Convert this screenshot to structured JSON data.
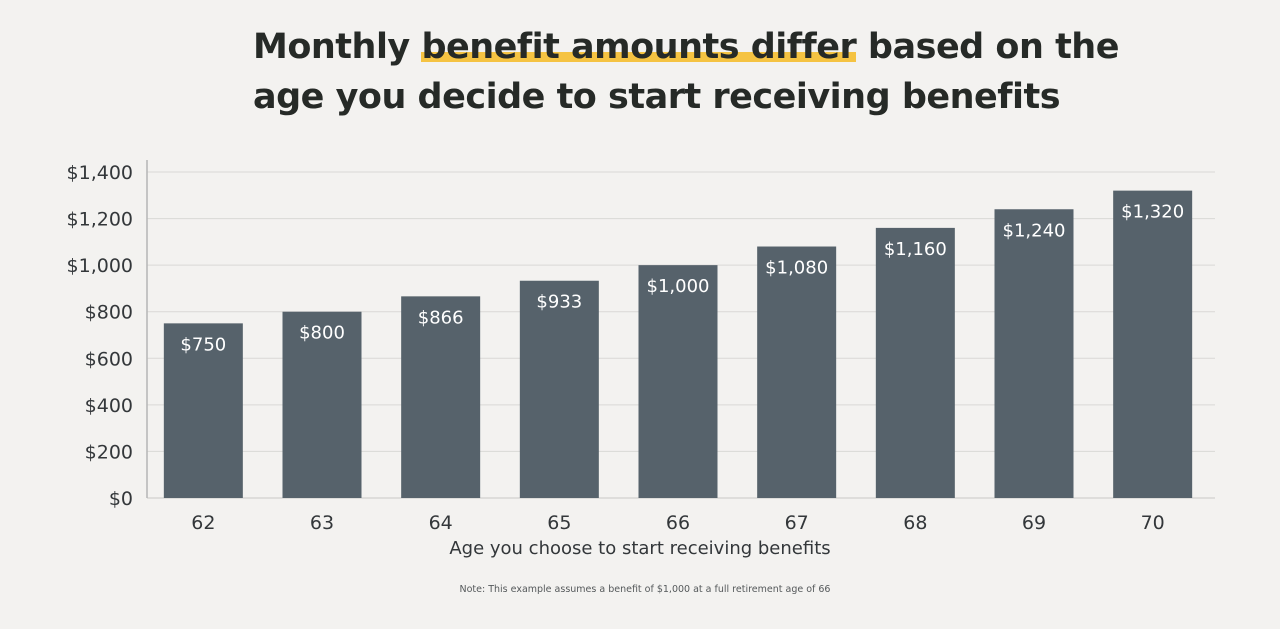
{
  "chart_data": {
    "type": "bar",
    "title_parts": {
      "before": "Monthly ",
      "highlight": "benefit amounts differ",
      "after_line1": " based on the",
      "line2": "age you decide to start receiving benefits"
    },
    "categories": [
      "62",
      "63",
      "64",
      "65",
      "66",
      "67",
      "68",
      "69",
      "70"
    ],
    "values": [
      750,
      800,
      866,
      933,
      1000,
      1080,
      1160,
      1240,
      1320
    ],
    "data_labels": [
      "$750",
      "$800",
      "$866",
      "$933",
      "$1,000",
      "$1,080",
      "$1,160",
      "$1,240",
      "$1,320"
    ],
    "xlabel": "Age you choose to start receiving benefits",
    "ylabel": "",
    "ylim": [
      0,
      1400
    ],
    "yticks": [
      0,
      200,
      400,
      600,
      800,
      1000,
      1200,
      1400
    ],
    "ytick_labels": [
      "$0",
      "$200",
      "$400",
      "$600",
      "$800",
      "$1,000",
      "$1,200",
      "$1,400"
    ],
    "grid": true,
    "note": "Note: This example assumes a benefit of $1,000 at a full retirement age of 66",
    "colors": {
      "bar": "#56626b",
      "highlight": "#f5c342",
      "background": "#f3f2f0",
      "grid": "#d9d8d6"
    }
  }
}
